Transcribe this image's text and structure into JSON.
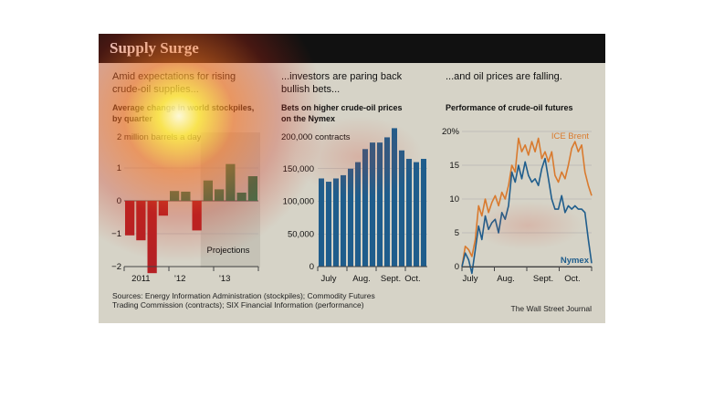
{
  "graphic": {
    "title": "Supply Surge",
    "sources_line1": "Sources: Energy Information Administration (stockpiles); Commodity Futures",
    "sources_line2": "Trading Commission (contracts); SIX Financial Information (performance)",
    "credit": "The Wall Street Journal"
  },
  "colors": {
    "red": "#b52024",
    "green": "#2e7a52",
    "blue": "#1f5d8c",
    "orange": "#d97a2e",
    "text": "#111111"
  },
  "chart_data": [
    {
      "type": "bar",
      "headline": [
        "Amid expectations for rising",
        "crude-oil supplies..."
      ],
      "title_lines": [
        "Average change in world stockpiles,",
        "by quarter"
      ],
      "unit_label": "2 million barrels a day",
      "annotation": "Projections",
      "ylim": [
        -2,
        2
      ],
      "yticks": [
        "1",
        "0",
        "−1",
        "−2"
      ],
      "xticks": [
        {
          "label": "2011",
          "index": 1.5
        },
        {
          "label": "'12",
          "index": 5
        },
        {
          "label": "'13",
          "index": 9
        }
      ],
      "values": [
        -1.05,
        -1.2,
        -2.2,
        -0.45,
        0.3,
        0.28,
        -0.9,
        0.62,
        0.35,
        1.12,
        0.25,
        0.75
      ],
      "projection_start_index": 7
    },
    {
      "type": "bar",
      "headline": [
        "...investors are paring back",
        "bullish bets..."
      ],
      "title_lines": [
        "Bets on higher crude-oil prices",
        "on the Nymex"
      ],
      "unit_label": "200,000 contracts",
      "ylim": [
        0,
        200000
      ],
      "yticks": [
        "150,000",
        "100,000",
        "50,000",
        "0"
      ],
      "xticks": [
        {
          "label": "July",
          "index": 1.5
        },
        {
          "label": "Aug.",
          "index": 6
        },
        {
          "label": "Sept.",
          "index": 10
        },
        {
          "label": "Oct.",
          "index": 13
        }
      ],
      "values": [
        135000,
        130000,
        135000,
        140000,
        150000,
        160000,
        180000,
        190000,
        190000,
        198000,
        212000,
        178000,
        165000,
        160000,
        165000
      ]
    },
    {
      "type": "line",
      "headline": [
        "...and oil prices are falling."
      ],
      "title": "Performance of crude-oil futures",
      "ylim": [
        0,
        20
      ],
      "yticks": [
        "20%",
        "15",
        "10",
        "5",
        "0"
      ],
      "xticks": [
        "July",
        "Aug.",
        "Sept.",
        "Oct."
      ],
      "series": [
        {
          "name": "ICE Brent",
          "color": "#d97a2e",
          "values": [
            0.0,
            3.0,
            2.5,
            1.5,
            4.0,
            9.0,
            7.5,
            10.0,
            8.0,
            9.5,
            10.5,
            9.0,
            11.0,
            10.0,
            12.0,
            15.0,
            14.0,
            19.0,
            17.0,
            18.0,
            16.5,
            18.5,
            17.0,
            19.0,
            16.0,
            17.0,
            15.5,
            17.0,
            13.5,
            12.5,
            14.0,
            13.0,
            15.0,
            17.5,
            18.5,
            17.0,
            18.0,
            14.0,
            12.0,
            10.5
          ]
        },
        {
          "name": "Nymex",
          "color": "#1f5d8c",
          "values": [
            0.0,
            2.0,
            1.0,
            -1.0,
            2.5,
            6.0,
            4.0,
            7.5,
            5.5,
            6.5,
            7.0,
            5.0,
            8.0,
            7.0,
            9.0,
            14.0,
            12.5,
            15.0,
            13.0,
            15.5,
            13.5,
            12.5,
            13.0,
            12.0,
            14.5,
            16.0,
            13.0,
            10.0,
            8.5,
            8.5,
            10.5,
            8.0,
            9.0,
            8.5,
            9.0,
            8.5,
            8.5,
            8.0,
            4.0,
            0.5
          ]
        }
      ]
    }
  ]
}
